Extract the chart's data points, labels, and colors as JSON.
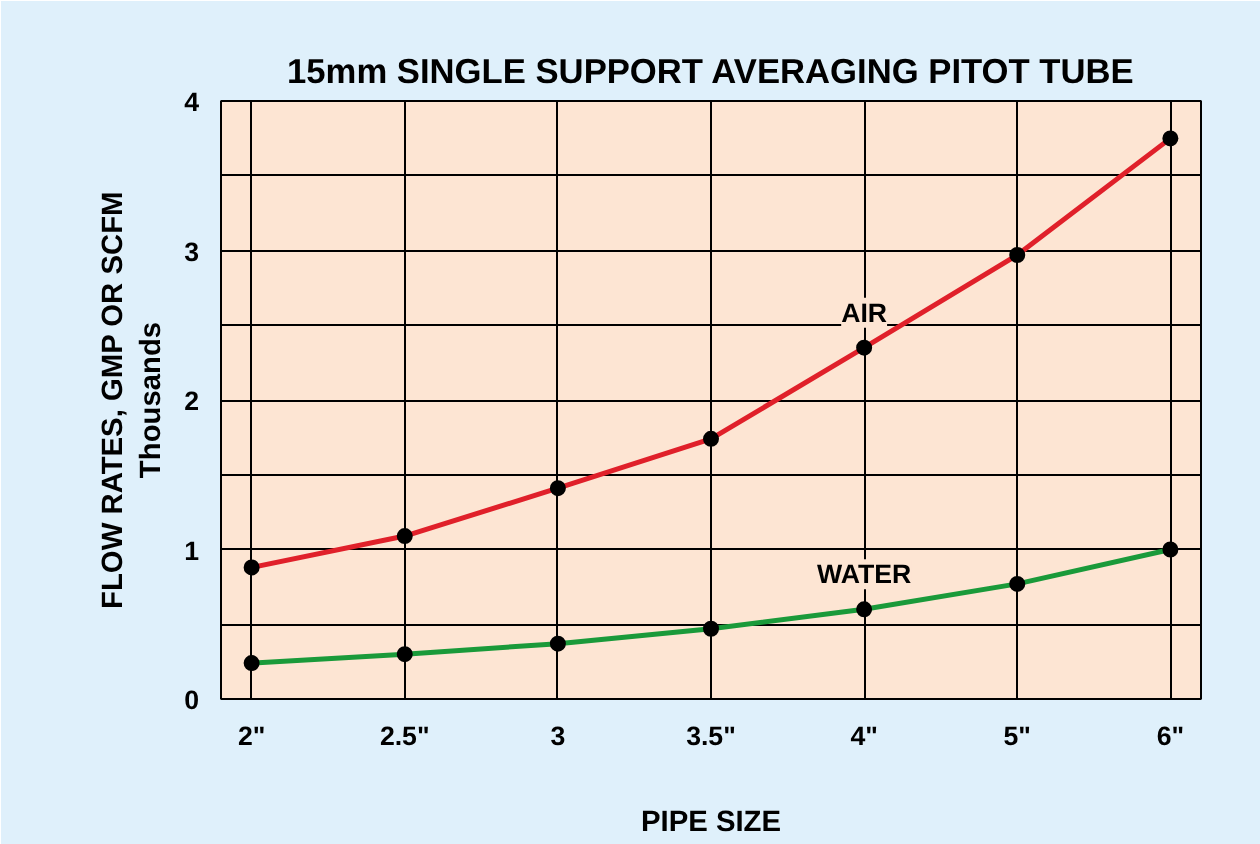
{
  "chart_data": {
    "type": "line",
    "title": "15mm SINGLE SUPPORT AVERAGING PITOT TUBE",
    "xlabel": "PIPE SIZE",
    "ylabel": "FLOW RATES, GMP OR SCFM\nThousands",
    "categories": [
      "2\"",
      "2.5\"",
      "3",
      "3.5\"",
      "4\"",
      "5\"",
      "6\""
    ],
    "series": [
      {
        "name": "AIR",
        "color": "#e0202a",
        "values": [
          0.88,
          1.09,
          1.41,
          1.74,
          2.35,
          2.97,
          3.75
        ]
      },
      {
        "name": "WATER",
        "color": "#1a9a3a",
        "values": [
          0.24,
          0.3,
          0.37,
          0.47,
          0.6,
          0.77,
          1.0
        ]
      }
    ],
    "ylim": [
      0,
      4
    ],
    "yticks": [
      0,
      {
        "value": 0.5,
        "label": null
      },
      1,
      {
        "value": 1.5,
        "label": null
      },
      2,
      {
        "value": 2.5,
        "label": null
      },
      3,
      {
        "value": 3.5,
        "label": null
      },
      4
    ],
    "grid": true,
    "marker": "circle",
    "line_style": "solid"
  }
}
